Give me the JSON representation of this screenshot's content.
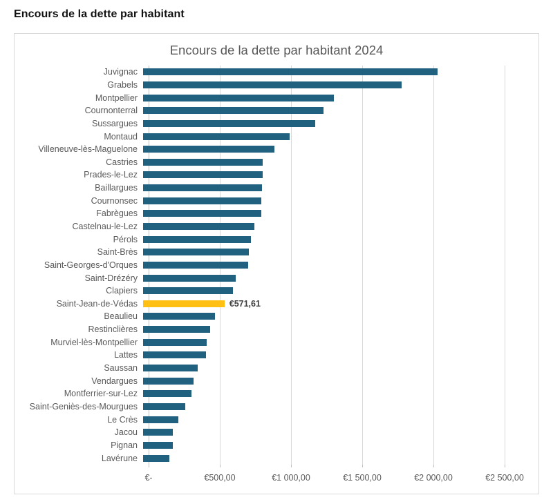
{
  "page": {
    "title": "Encours de la dette par habitant"
  },
  "chart": {
    "title": "Encours de la dette par habitant 2024"
  },
  "chart_data": {
    "type": "bar",
    "orientation": "horizontal",
    "title": "Encours de la dette par habitant 2024",
    "categories": [
      "Juvignac",
      "Grabels",
      "Montpellier",
      "Cournonterral",
      "Sussargues",
      "Montaud",
      "Villeneuve-lès-Maguelone",
      "Castries",
      "Prades-le-Lez",
      "Baillargues",
      "Cournonsec",
      "Fabrègues",
      "Castelnau-le-Lez",
      "Pérols",
      "Saint-Brès",
      "Saint-Georges-d'Orques",
      "Saint-Drézéry",
      "Clapiers",
      "Saint-Jean-de-Védas",
      "Beaulieu",
      "Restinclières",
      "Murviel-lès-Montpellier",
      "Lattes",
      "Saussan",
      "Vendargues",
      "Montferrier-sur-Lez",
      "Saint-Geniès-des-Mourgues",
      "Le Crès",
      "Jacou",
      "Pignan",
      "Lavérune"
    ],
    "values": [
      2070,
      1815,
      1340,
      1265,
      1210,
      1030,
      920,
      840,
      838,
      835,
      830,
      828,
      780,
      755,
      745,
      740,
      650,
      630,
      571.61,
      505,
      470,
      445,
      442,
      383,
      355,
      340,
      295,
      248,
      210,
      208,
      185
    ],
    "values_note": "values in euros per inhabitant; only Saint-Jean-de-Védas is labeled on the chart, others estimated from gridlines",
    "highlight": {
      "category": "Saint-Jean-de-Védas",
      "index": 18,
      "value": 571.61,
      "data_label": "€571,61",
      "color": "#FFC013"
    },
    "bar_color": "#1F617E",
    "x_ticks": [
      "€-",
      "€500,00",
      "€1 000,00",
      "€1 500,00",
      "€2 000,00",
      "€2 500,00"
    ],
    "x_tick_values": [
      0,
      500,
      1000,
      1500,
      2000,
      2500
    ],
    "xlim": [
      0,
      2575
    ],
    "grid": true,
    "legend": false,
    "colors": {
      "title_text": "#595959",
      "axis_text": "#595959",
      "gridline": "#D9D9D9",
      "data_label_text": "#404040",
      "card_border": "#D9D9D9"
    }
  }
}
